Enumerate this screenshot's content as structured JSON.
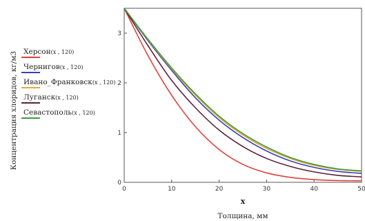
{
  "chart_data": {
    "type": "line",
    "xlabel_var": "x",
    "xlabel": "Толщина, мм",
    "ylabel": "Концентрация хлоридов, кг/м3",
    "xlim": [
      0,
      50
    ],
    "ylim": [
      0,
      3.5
    ],
    "x_ticks": [
      0,
      10,
      20,
      30,
      40,
      50
    ],
    "y_ticks": [
      0,
      1,
      2,
      3
    ],
    "grid": false,
    "legend_position": "left",
    "x": [
      0,
      5,
      10,
      15,
      20,
      25,
      30,
      35,
      40,
      45,
      50
    ],
    "series": [
      {
        "name": "Херсон",
        "arg": "(x , 120)",
        "color": "#e0403a",
        "values": [
          3.5,
          2.55,
          1.75,
          1.12,
          0.66,
          0.36,
          0.19,
          0.1,
          0.055,
          0.035,
          0.03
        ]
      },
      {
        "name": "Чернигов",
        "arg": "(x , 120)",
        "color": "#3a3fb0",
        "values": [
          3.5,
          2.85,
          2.25,
          1.7,
          1.25,
          0.9,
          0.63,
          0.43,
          0.3,
          0.22,
          0.18
        ]
      },
      {
        "name": "Ивано_Франковск",
        "arg": "(x , 120)",
        "color": "#e2a93a",
        "values": [
          3.5,
          2.87,
          2.28,
          1.75,
          1.3,
          0.95,
          0.68,
          0.48,
          0.34,
          0.26,
          0.22
        ]
      },
      {
        "name": "Луганск",
        "arg": "(x , 120)",
        "color": "#5a1f3a",
        "values": [
          3.5,
          2.75,
          2.05,
          1.5,
          1.05,
          0.72,
          0.48,
          0.32,
          0.21,
          0.14,
          0.11
        ]
      },
      {
        "name": "Севастополь",
        "arg": "(x , 120)",
        "color": "#3f9a3a",
        "values": [
          3.5,
          2.88,
          2.3,
          1.78,
          1.33,
          0.98,
          0.71,
          0.5,
          0.36,
          0.27,
          0.23
        ]
      }
    ]
  }
}
